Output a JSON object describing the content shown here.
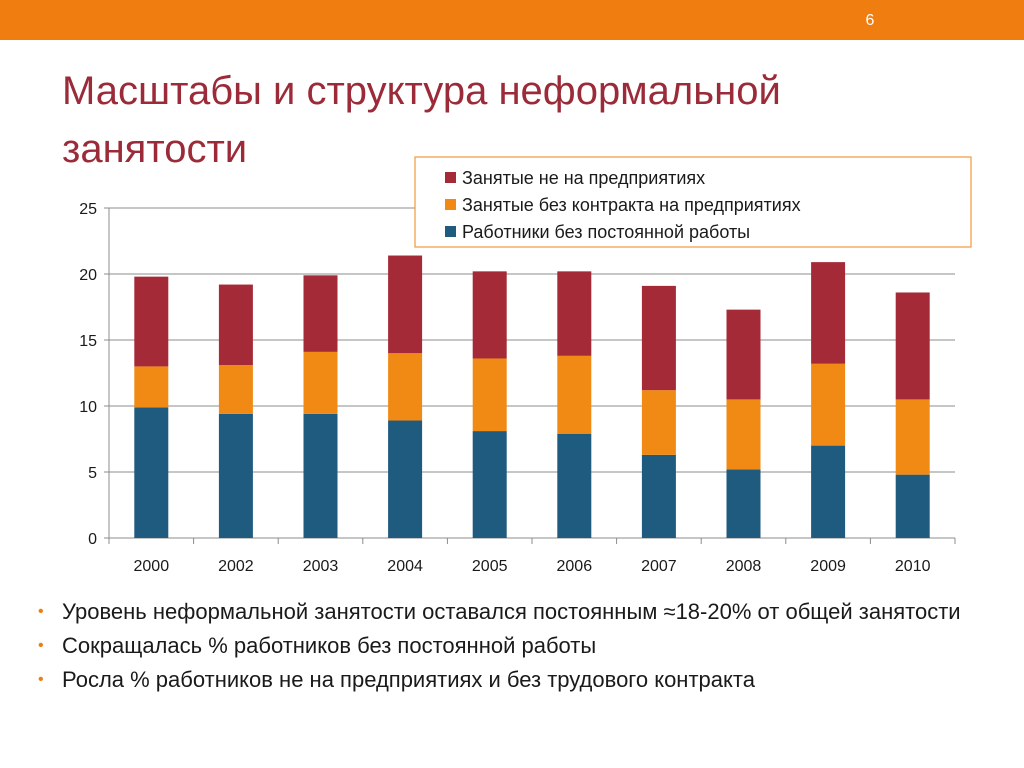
{
  "slide_number": "6",
  "title": "Масштабы и структура неформальной занятости",
  "bullets": [
    "Уровень неформальной занятости оставался постоянным ≈18-20% от общей занятости",
    "Сокращалась % работников без постоянной работы",
    "Росла % работников не на предприятиях и без трудового контракта"
  ],
  "chart_data": {
    "type": "bar",
    "stacked": true,
    "categories": [
      "2000",
      "2002",
      "2003",
      "2004",
      "2005",
      "2006",
      "2007",
      "2008",
      "2009",
      "2010"
    ],
    "series": [
      {
        "name": "Работники без постоянной работы",
        "color": "#1f5a7f",
        "values": [
          9.9,
          9.4,
          9.4,
          8.9,
          8.1,
          7.9,
          6.3,
          5.2,
          7.0,
          4.8
        ]
      },
      {
        "name": "Занятые без контракта на предприятиях",
        "color": "#f08a14",
        "values": [
          3.1,
          3.7,
          4.7,
          5.1,
          5.5,
          5.9,
          4.9,
          5.3,
          6.2,
          5.7
        ]
      },
      {
        "name": "Занятые не на предприятиях",
        "color": "#a52a37",
        "values": [
          6.8,
          6.1,
          5.8,
          7.4,
          6.6,
          6.4,
          7.9,
          6.8,
          7.7,
          8.1
        ]
      }
    ],
    "yticks": [
      "0",
      "5",
      "10",
      "15",
      "20",
      "25"
    ],
    "ylim": [
      0,
      25
    ],
    "legend_order": [
      "Занятые не на предприятиях",
      "Занятые без контракта на предприятиях",
      "Работники без постоянной работы"
    ],
    "legend_position": "top-right",
    "grid": true
  }
}
